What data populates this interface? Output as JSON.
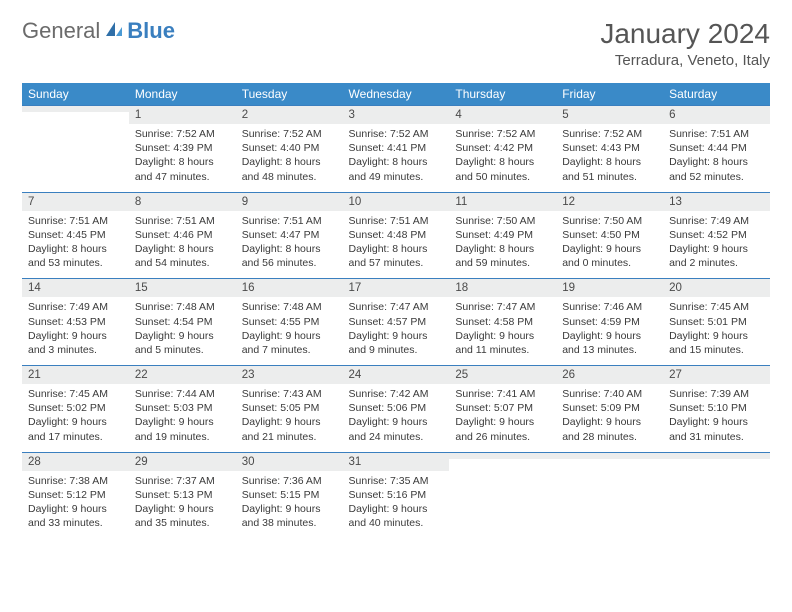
{
  "logo": {
    "general": "General",
    "blue": "Blue"
  },
  "title": {
    "month": "January 2024",
    "location": "Terradura, Veneto, Italy"
  },
  "colors": {
    "header_bg": "#3a8ac8",
    "header_text": "#ffffff",
    "daynum_bg": "#eceded",
    "border": "#3a7fbf",
    "text": "#333333",
    "logo_gray": "#6b6b6b",
    "logo_blue": "#3a7fbf"
  },
  "typography": {
    "month_fontsize": 28,
    "location_fontsize": 15,
    "header_fontsize": 12,
    "daynum_fontsize": 11.5,
    "body_fontsize": 10.5
  },
  "columns": [
    "Sunday",
    "Monday",
    "Tuesday",
    "Wednesday",
    "Thursday",
    "Friday",
    "Saturday"
  ],
  "weeks": [
    [
      {
        "num": "",
        "sunrise": "",
        "sunset": "",
        "daylight": ""
      },
      {
        "num": "1",
        "sunrise": "7:52 AM",
        "sunset": "4:39 PM",
        "daylight": "8 hours and 47 minutes."
      },
      {
        "num": "2",
        "sunrise": "7:52 AM",
        "sunset": "4:40 PM",
        "daylight": "8 hours and 48 minutes."
      },
      {
        "num": "3",
        "sunrise": "7:52 AM",
        "sunset": "4:41 PM",
        "daylight": "8 hours and 49 minutes."
      },
      {
        "num": "4",
        "sunrise": "7:52 AM",
        "sunset": "4:42 PM",
        "daylight": "8 hours and 50 minutes."
      },
      {
        "num": "5",
        "sunrise": "7:52 AM",
        "sunset": "4:43 PM",
        "daylight": "8 hours and 51 minutes."
      },
      {
        "num": "6",
        "sunrise": "7:51 AM",
        "sunset": "4:44 PM",
        "daylight": "8 hours and 52 minutes."
      }
    ],
    [
      {
        "num": "7",
        "sunrise": "7:51 AM",
        "sunset": "4:45 PM",
        "daylight": "8 hours and 53 minutes."
      },
      {
        "num": "8",
        "sunrise": "7:51 AM",
        "sunset": "4:46 PM",
        "daylight": "8 hours and 54 minutes."
      },
      {
        "num": "9",
        "sunrise": "7:51 AM",
        "sunset": "4:47 PM",
        "daylight": "8 hours and 56 minutes."
      },
      {
        "num": "10",
        "sunrise": "7:51 AM",
        "sunset": "4:48 PM",
        "daylight": "8 hours and 57 minutes."
      },
      {
        "num": "11",
        "sunrise": "7:50 AM",
        "sunset": "4:49 PM",
        "daylight": "8 hours and 59 minutes."
      },
      {
        "num": "12",
        "sunrise": "7:50 AM",
        "sunset": "4:50 PM",
        "daylight": "9 hours and 0 minutes."
      },
      {
        "num": "13",
        "sunrise": "7:49 AM",
        "sunset": "4:52 PM",
        "daylight": "9 hours and 2 minutes."
      }
    ],
    [
      {
        "num": "14",
        "sunrise": "7:49 AM",
        "sunset": "4:53 PM",
        "daylight": "9 hours and 3 minutes."
      },
      {
        "num": "15",
        "sunrise": "7:48 AM",
        "sunset": "4:54 PM",
        "daylight": "9 hours and 5 minutes."
      },
      {
        "num": "16",
        "sunrise": "7:48 AM",
        "sunset": "4:55 PM",
        "daylight": "9 hours and 7 minutes."
      },
      {
        "num": "17",
        "sunrise": "7:47 AM",
        "sunset": "4:57 PM",
        "daylight": "9 hours and 9 minutes."
      },
      {
        "num": "18",
        "sunrise": "7:47 AM",
        "sunset": "4:58 PM",
        "daylight": "9 hours and 11 minutes."
      },
      {
        "num": "19",
        "sunrise": "7:46 AM",
        "sunset": "4:59 PM",
        "daylight": "9 hours and 13 minutes."
      },
      {
        "num": "20",
        "sunrise": "7:45 AM",
        "sunset": "5:01 PM",
        "daylight": "9 hours and 15 minutes."
      }
    ],
    [
      {
        "num": "21",
        "sunrise": "7:45 AM",
        "sunset": "5:02 PM",
        "daylight": "9 hours and 17 minutes."
      },
      {
        "num": "22",
        "sunrise": "7:44 AM",
        "sunset": "5:03 PM",
        "daylight": "9 hours and 19 minutes."
      },
      {
        "num": "23",
        "sunrise": "7:43 AM",
        "sunset": "5:05 PM",
        "daylight": "9 hours and 21 minutes."
      },
      {
        "num": "24",
        "sunrise": "7:42 AM",
        "sunset": "5:06 PM",
        "daylight": "9 hours and 24 minutes."
      },
      {
        "num": "25",
        "sunrise": "7:41 AM",
        "sunset": "5:07 PM",
        "daylight": "9 hours and 26 minutes."
      },
      {
        "num": "26",
        "sunrise": "7:40 AM",
        "sunset": "5:09 PM",
        "daylight": "9 hours and 28 minutes."
      },
      {
        "num": "27",
        "sunrise": "7:39 AM",
        "sunset": "5:10 PM",
        "daylight": "9 hours and 31 minutes."
      }
    ],
    [
      {
        "num": "28",
        "sunrise": "7:38 AM",
        "sunset": "5:12 PM",
        "daylight": "9 hours and 33 minutes."
      },
      {
        "num": "29",
        "sunrise": "7:37 AM",
        "sunset": "5:13 PM",
        "daylight": "9 hours and 35 minutes."
      },
      {
        "num": "30",
        "sunrise": "7:36 AM",
        "sunset": "5:15 PM",
        "daylight": "9 hours and 38 minutes."
      },
      {
        "num": "31",
        "sunrise": "7:35 AM",
        "sunset": "5:16 PM",
        "daylight": "9 hours and 40 minutes."
      },
      {
        "num": "",
        "sunrise": "",
        "sunset": "",
        "daylight": ""
      },
      {
        "num": "",
        "sunrise": "",
        "sunset": "",
        "daylight": ""
      },
      {
        "num": "",
        "sunrise": "",
        "sunset": "",
        "daylight": ""
      }
    ]
  ],
  "labels": {
    "sunrise": "Sunrise: ",
    "sunset": "Sunset: ",
    "daylight": "Daylight: "
  }
}
